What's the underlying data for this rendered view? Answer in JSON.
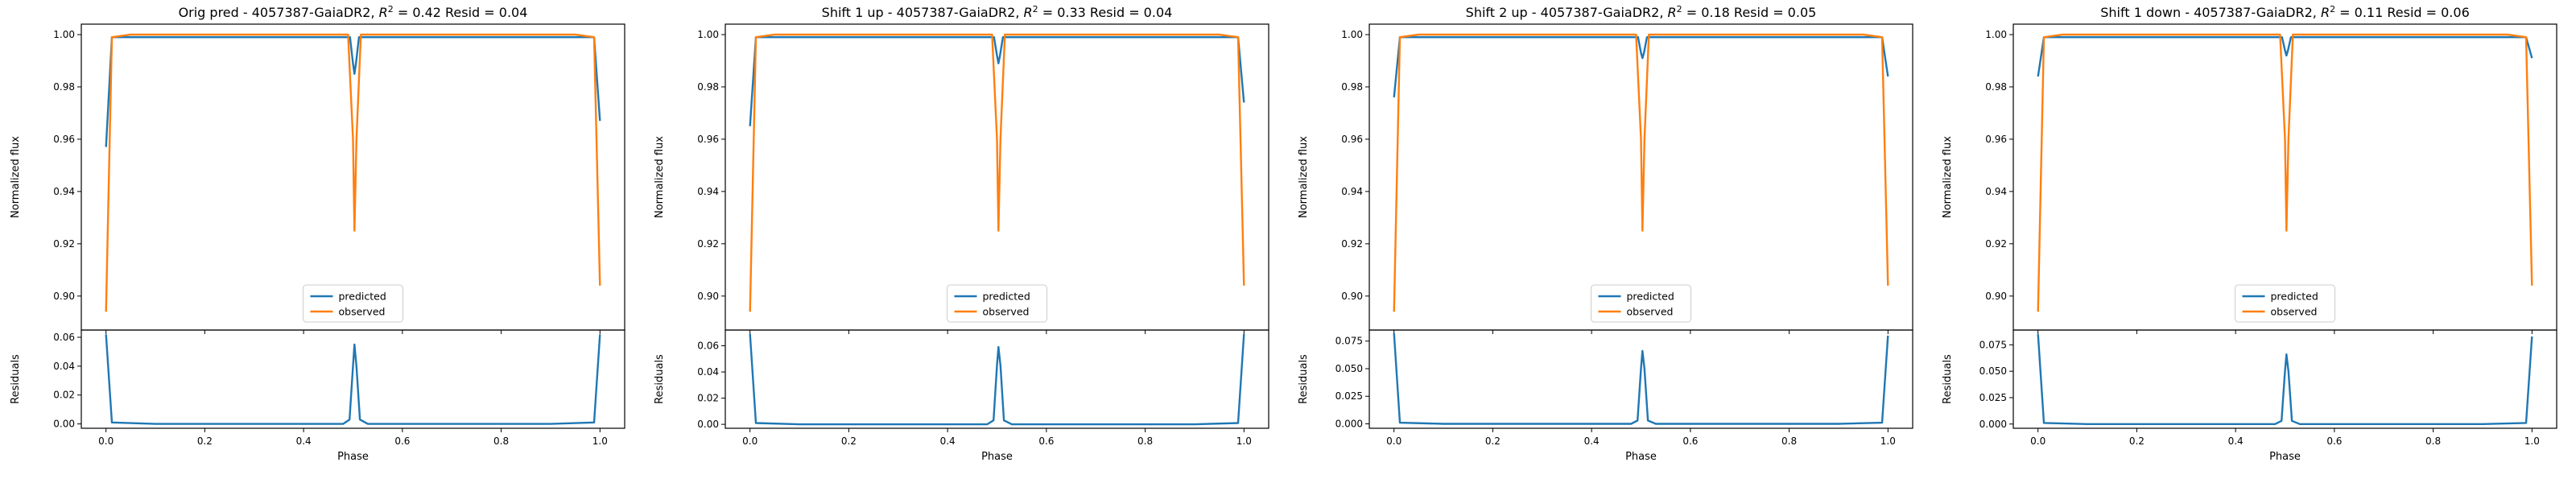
{
  "colors": {
    "predicted": "#1f77b4",
    "observed": "#ff7f0e",
    "axes": "#000000",
    "legend_border": "#cccccc"
  },
  "legend": {
    "predicted": "predicted",
    "observed": "observed",
    "placement": "lower-center"
  },
  "shared": {
    "ylabel_top": "Normalized flux",
    "ylabel_bottom": "Residuals",
    "xlabel": "Phase"
  },
  "chart_data": [
    {
      "type": "line",
      "title_prefix": "Orig pred - 4057387-GaiaDR2, ",
      "r2_text": "= 0.42",
      "resid_text": "Resid = 0.04",
      "x_ticks": [
        "0.0",
        "0.2",
        "0.4",
        "0.6",
        "0.8",
        "1.0"
      ],
      "xlim": [
        -0.05,
        1.05
      ],
      "top": {
        "ylim": [
          0.887,
          1.004
        ],
        "y_ticks": [
          "0.90",
          "0.92",
          "0.94",
          "0.96",
          "0.98",
          "1.00"
        ],
        "series": [
          {
            "name": "predicted",
            "points": [
              [
                0.0,
                0.957
              ],
              [
                0.012,
                0.999
              ],
              [
                0.06,
                0.999
              ],
              [
                0.2,
                0.999
              ],
              [
                0.4,
                0.999
              ],
              [
                0.494,
                0.999
              ],
              [
                0.5,
                0.989
              ],
              [
                0.503,
                0.985
              ],
              [
                0.506,
                0.989
              ],
              [
                0.512,
                0.999
              ],
              [
                0.6,
                0.999
              ],
              [
                0.8,
                0.999
              ],
              [
                0.94,
                0.999
              ],
              [
                0.988,
                0.999
              ],
              [
                1.0,
                0.967
              ]
            ]
          },
          {
            "name": "observed",
            "points": [
              [
                0.0,
                0.894
              ],
              [
                0.012,
                0.999
              ],
              [
                0.05,
                1.0
              ],
              [
                0.2,
                1.0
              ],
              [
                0.4,
                1.0
              ],
              [
                0.49,
                1.0
              ],
              [
                0.5,
                0.96
              ],
              [
                0.503,
                0.925
              ],
              [
                0.507,
                0.96
              ],
              [
                0.516,
                1.0
              ],
              [
                0.6,
                1.0
              ],
              [
                0.8,
                1.0
              ],
              [
                0.95,
                1.0
              ],
              [
                0.988,
                0.999
              ],
              [
                1.0,
                0.904
              ]
            ]
          }
        ]
      },
      "bottom": {
        "ylim": [
          -0.003,
          0.065
        ],
        "y_ticks": [
          "0.00",
          "0.02",
          "0.04",
          "0.06"
        ],
        "series": [
          {
            "name": "residuals",
            "points": [
              [
                0.0,
                0.062
              ],
              [
                0.012,
                0.001
              ],
              [
                0.1,
                0.0
              ],
              [
                0.3,
                0.0
              ],
              [
                0.48,
                0.0
              ],
              [
                0.493,
                0.003
              ],
              [
                0.5,
                0.04
              ],
              [
                0.503,
                0.055
              ],
              [
                0.507,
                0.04
              ],
              [
                0.514,
                0.003
              ],
              [
                0.53,
                0.0
              ],
              [
                0.7,
                0.0
              ],
              [
                0.9,
                0.0
              ],
              [
                0.988,
                0.001
              ],
              [
                1.0,
                0.062
              ]
            ]
          }
        ]
      }
    },
    {
      "type": "line",
      "title_prefix": "Shift 1 up - 4057387-GaiaDR2, ",
      "r2_text": "= 0.33",
      "resid_text": "Resid = 0.04",
      "x_ticks": [
        "0.0",
        "0.2",
        "0.4",
        "0.6",
        "0.8",
        "1.0"
      ],
      "xlim": [
        -0.05,
        1.05
      ],
      "top": {
        "ylim": [
          0.887,
          1.004
        ],
        "y_ticks": [
          "0.90",
          "0.92",
          "0.94",
          "0.96",
          "0.98",
          "1.00"
        ],
        "series": [
          {
            "name": "predicted",
            "points": [
              [
                0.0,
                0.965
              ],
              [
                0.012,
                0.999
              ],
              [
                0.06,
                0.999
              ],
              [
                0.2,
                0.999
              ],
              [
                0.4,
                0.999
              ],
              [
                0.494,
                0.999
              ],
              [
                0.5,
                0.992
              ],
              [
                0.503,
                0.989
              ],
              [
                0.506,
                0.992
              ],
              [
                0.512,
                0.999
              ],
              [
                0.6,
                0.999
              ],
              [
                0.8,
                0.999
              ],
              [
                0.94,
                0.999
              ],
              [
                0.988,
                0.999
              ],
              [
                1.0,
                0.974
              ]
            ]
          },
          {
            "name": "observed",
            "points": [
              [
                0.0,
                0.894
              ],
              [
                0.012,
                0.999
              ],
              [
                0.05,
                1.0
              ],
              [
                0.2,
                1.0
              ],
              [
                0.4,
                1.0
              ],
              [
                0.49,
                1.0
              ],
              [
                0.5,
                0.96
              ],
              [
                0.503,
                0.925
              ],
              [
                0.507,
                0.96
              ],
              [
                0.516,
                1.0
              ],
              [
                0.6,
                1.0
              ],
              [
                0.8,
                1.0
              ],
              [
                0.95,
                1.0
              ],
              [
                0.988,
                0.999
              ],
              [
                1.0,
                0.904
              ]
            ]
          }
        ]
      },
      "bottom": {
        "ylim": [
          -0.003,
          0.072
        ],
        "y_ticks": [
          "0.00",
          "0.02",
          "0.04",
          "0.06"
        ],
        "series": [
          {
            "name": "residuals",
            "points": [
              [
                0.0,
                0.069
              ],
              [
                0.012,
                0.001
              ],
              [
                0.1,
                0.0
              ],
              [
                0.3,
                0.0
              ],
              [
                0.48,
                0.0
              ],
              [
                0.493,
                0.003
              ],
              [
                0.5,
                0.045
              ],
              [
                0.503,
                0.059
              ],
              [
                0.507,
                0.045
              ],
              [
                0.514,
                0.003
              ],
              [
                0.53,
                0.0
              ],
              [
                0.7,
                0.0
              ],
              [
                0.9,
                0.0
              ],
              [
                0.988,
                0.001
              ],
              [
                1.0,
                0.069
              ]
            ]
          }
        ]
      }
    },
    {
      "type": "line",
      "title_prefix": "Shift 2 up - 4057387-GaiaDR2, ",
      "r2_text": "= 0.18",
      "resid_text": "Resid = 0.05",
      "x_ticks": [
        "0.0",
        "0.2",
        "0.4",
        "0.6",
        "0.8",
        "1.0"
      ],
      "xlim": [
        -0.05,
        1.05
      ],
      "top": {
        "ylim": [
          0.887,
          1.004
        ],
        "y_ticks": [
          "0.90",
          "0.92",
          "0.94",
          "0.96",
          "0.98",
          "1.00"
        ],
        "series": [
          {
            "name": "predicted",
            "points": [
              [
                0.0,
                0.976
              ],
              [
                0.012,
                0.999
              ],
              [
                0.06,
                0.999
              ],
              [
                0.2,
                0.999
              ],
              [
                0.4,
                0.999
              ],
              [
                0.494,
                0.999
              ],
              [
                0.5,
                0.993
              ],
              [
                0.503,
                0.991
              ],
              [
                0.506,
                0.993
              ],
              [
                0.512,
                0.999
              ],
              [
                0.6,
                0.999
              ],
              [
                0.8,
                0.999
              ],
              [
                0.94,
                0.999
              ],
              [
                0.988,
                0.999
              ],
              [
                1.0,
                0.984
              ]
            ]
          },
          {
            "name": "observed",
            "points": [
              [
                0.0,
                0.894
              ],
              [
                0.012,
                0.999
              ],
              [
                0.05,
                1.0
              ],
              [
                0.2,
                1.0
              ],
              [
                0.4,
                1.0
              ],
              [
                0.49,
                1.0
              ],
              [
                0.5,
                0.96
              ],
              [
                0.503,
                0.925
              ],
              [
                0.507,
                0.96
              ],
              [
                0.516,
                1.0
              ],
              [
                0.6,
                1.0
              ],
              [
                0.8,
                1.0
              ],
              [
                0.95,
                1.0
              ],
              [
                0.988,
                0.999
              ],
              [
                1.0,
                0.904
              ]
            ]
          }
        ]
      },
      "bottom": {
        "ylim": [
          -0.004,
          0.085
        ],
        "y_ticks": [
          "0.000",
          "0.025",
          "0.050",
          "0.075"
        ],
        "series": [
          {
            "name": "residuals",
            "points": [
              [
                0.0,
                0.082
              ],
              [
                0.012,
                0.001
              ],
              [
                0.1,
                0.0
              ],
              [
                0.3,
                0.0
              ],
              [
                0.48,
                0.0
              ],
              [
                0.493,
                0.003
              ],
              [
                0.5,
                0.05
              ],
              [
                0.503,
                0.066
              ],
              [
                0.507,
                0.05
              ],
              [
                0.514,
                0.003
              ],
              [
                0.53,
                0.0
              ],
              [
                0.7,
                0.0
              ],
              [
                0.9,
                0.0
              ],
              [
                0.988,
                0.001
              ],
              [
                1.0,
                0.08
              ]
            ]
          }
        ]
      }
    },
    {
      "type": "line",
      "title_prefix": "Shift 1 down - 4057387-GaiaDR2, ",
      "r2_text": "= 0.11",
      "resid_text": "Resid = 0.06",
      "x_ticks": [
        "0.0",
        "0.2",
        "0.4",
        "0.6",
        "0.8",
        "1.0"
      ],
      "xlim": [
        -0.05,
        1.05
      ],
      "top": {
        "ylim": [
          0.887,
          1.004
        ],
        "y_ticks": [
          "0.90",
          "0.92",
          "0.94",
          "0.96",
          "0.98",
          "1.00"
        ],
        "series": [
          {
            "name": "predicted",
            "points": [
              [
                0.0,
                0.984
              ],
              [
                0.012,
                0.999
              ],
              [
                0.06,
                0.999
              ],
              [
                0.2,
                0.999
              ],
              [
                0.4,
                0.999
              ],
              [
                0.494,
                0.999
              ],
              [
                0.5,
                0.994
              ],
              [
                0.503,
                0.992
              ],
              [
                0.506,
                0.994
              ],
              [
                0.512,
                0.999
              ],
              [
                0.6,
                0.999
              ],
              [
                0.8,
                0.999
              ],
              [
                0.94,
                0.999
              ],
              [
                0.988,
                0.999
              ],
              [
                1.0,
                0.991
              ]
            ]
          },
          {
            "name": "observed",
            "points": [
              [
                0.0,
                0.894
              ],
              [
                0.012,
                0.999
              ],
              [
                0.05,
                1.0
              ],
              [
                0.2,
                1.0
              ],
              [
                0.4,
                1.0
              ],
              [
                0.49,
                1.0
              ],
              [
                0.5,
                0.96
              ],
              [
                0.503,
                0.925
              ],
              [
                0.507,
                0.96
              ],
              [
                0.516,
                1.0
              ],
              [
                0.6,
                1.0
              ],
              [
                0.8,
                1.0
              ],
              [
                0.95,
                1.0
              ],
              [
                0.988,
                0.999
              ],
              [
                1.0,
                0.904
              ]
            ]
          }
        ]
      },
      "bottom": {
        "ylim": [
          -0.004,
          0.089
        ],
        "y_ticks": [
          "0.000",
          "0.025",
          "0.050",
          "0.075"
        ],
        "series": [
          {
            "name": "residuals",
            "points": [
              [
                0.0,
                0.085
              ],
              [
                0.012,
                0.001
              ],
              [
                0.1,
                0.0
              ],
              [
                0.3,
                0.0
              ],
              [
                0.48,
                0.0
              ],
              [
                0.493,
                0.003
              ],
              [
                0.5,
                0.05
              ],
              [
                0.503,
                0.066
              ],
              [
                0.507,
                0.05
              ],
              [
                0.514,
                0.003
              ],
              [
                0.53,
                0.0
              ],
              [
                0.7,
                0.0
              ],
              [
                0.9,
                0.0
              ],
              [
                0.988,
                0.001
              ],
              [
                1.0,
                0.083
              ]
            ]
          }
        ]
      }
    }
  ]
}
